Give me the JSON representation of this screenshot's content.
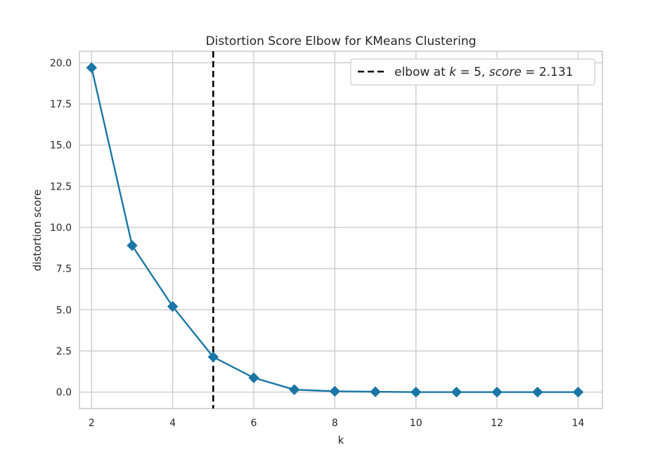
{
  "chart_data": {
    "type": "line",
    "title": "Distortion Score Elbow for KMeans Clustering",
    "xlabel": "k",
    "ylabel": "distortion score",
    "xlim": [
      1.7,
      14.6
    ],
    "ylim": [
      -1.0,
      20.7
    ],
    "x_ticks": [
      2,
      4,
      6,
      8,
      10,
      12,
      14
    ],
    "y_ticks": [
      0.0,
      2.5,
      5.0,
      7.5,
      10.0,
      12.5,
      15.0,
      17.5,
      20.0
    ],
    "x_tick_labels": [
      "2",
      "4",
      "6",
      "8",
      "10",
      "12",
      "14"
    ],
    "y_tick_labels": [
      "0.0",
      "2.5",
      "5.0",
      "7.5",
      "10.0",
      "12.5",
      "15.0",
      "17.5",
      "20.0"
    ],
    "grid": true,
    "legend_position": "top-right",
    "series": [
      {
        "x": [
          2,
          3,
          4,
          5,
          6,
          7,
          8,
          9,
          10,
          11,
          12,
          13,
          14
        ],
        "values": [
          19.7,
          8.9,
          5.2,
          2.131,
          0.87,
          0.15,
          0.05,
          0.02,
          0.0,
          0.0,
          0.0,
          0.0,
          0.0
        ],
        "color": "#1a76a6",
        "marker": "diamond"
      }
    ],
    "elbow": {
      "k": 5,
      "score": 2.131,
      "label_prefix": "elbow at ",
      "label_k": "k",
      "label_eq1": " = 5, ",
      "label_score": "score",
      "label_eq2": " = 2.131",
      "color": "#000000",
      "style": "dashed"
    }
  }
}
